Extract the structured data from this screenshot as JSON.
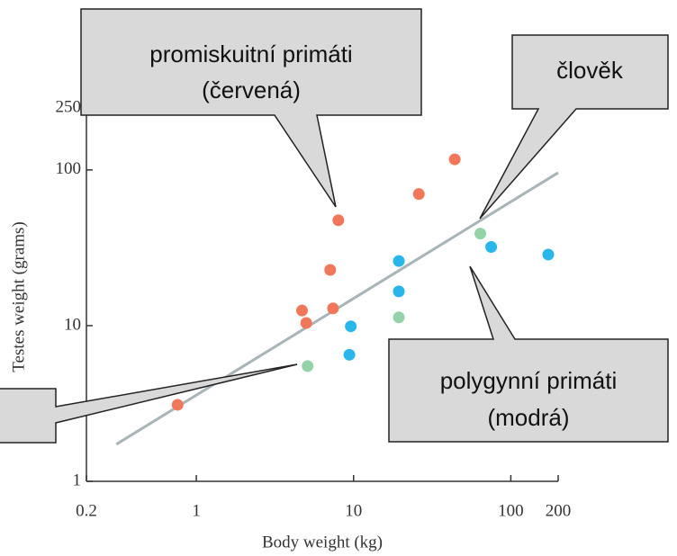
{
  "chart_data": {
    "type": "scatter",
    "xlabel": "Body weight (kg)",
    "ylabel": "Testes weight (grams)",
    "xscale": "log",
    "yscale": "log",
    "xlim": [
      0.2,
      200
    ],
    "xticks": [
      0.2,
      1,
      10,
      100,
      200
    ],
    "ylim": [
      1,
      250
    ],
    "yticks": [
      1,
      10,
      100,
      250
    ],
    "series": [
      {
        "color": "#f0775a",
        "x": [
          0.76,
          4.7,
          5.0,
          7.4,
          7.1,
          8.0,
          26,
          44
        ],
        "values": [
          3.1,
          12.5,
          10.4,
          12.9,
          22.8,
          47.5,
          70,
          117
        ]
      },
      {
        "color": "#29b6ea",
        "x": [
          9.6,
          9.4,
          19.4,
          19.4,
          75,
          173
        ],
        "values": [
          9.9,
          6.5,
          26,
          16.6,
          32,
          28.6
        ]
      },
      {
        "color": "#94d3a8",
        "x": [
          5.1,
          19.4,
          64
        ],
        "values": [
          5.5,
          11.3,
          39
        ]
      }
    ],
    "trendline": {
      "color": "#a9b4b8",
      "x": [
        0.31,
        200
      ],
      "values": [
        1.73,
        96
      ]
    },
    "annotations": [
      {
        "lines": [
          "promiskuitní primáti",
          "(červená)"
        ]
      },
      {
        "lines": [
          "člověk"
        ]
      },
      {
        "lines": [
          "polygynní primáti",
          "(modrá)"
        ]
      }
    ]
  }
}
